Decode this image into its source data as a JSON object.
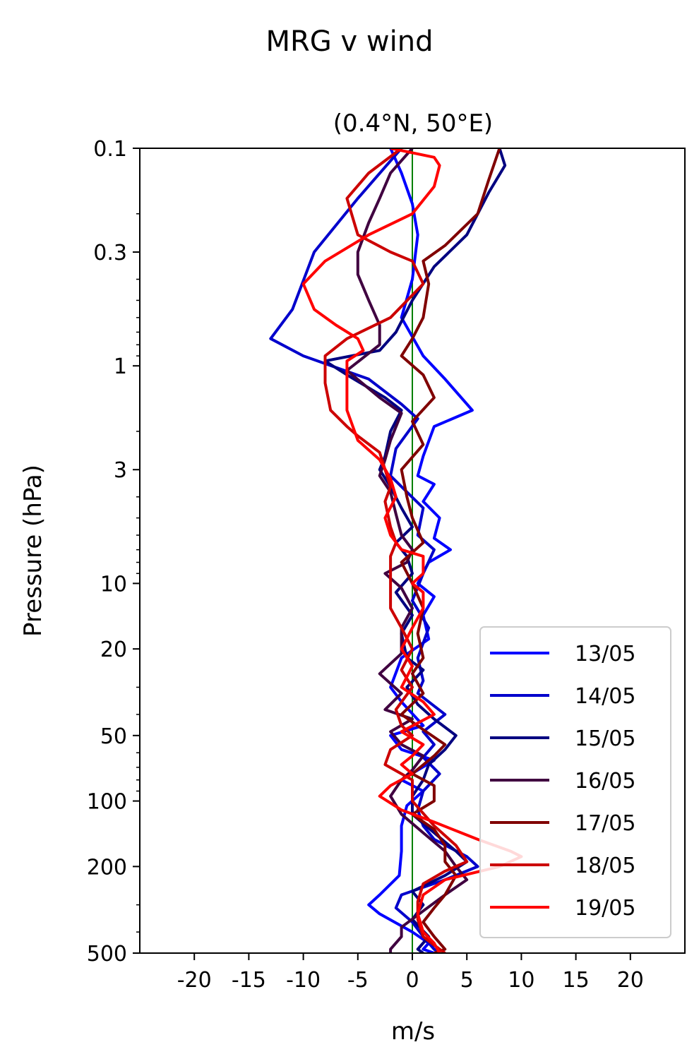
{
  "chart_data": {
    "type": "line",
    "suptitle": "MRG v wind",
    "title": "(0.4°N, 50°E)",
    "xlabel": "m/s",
    "ylabel": "Pressure (hPa)",
    "xlim": [
      -25,
      25
    ],
    "ylim": [
      500,
      0.1
    ],
    "yscale": "log",
    "xticks": [
      -20,
      -15,
      -10,
      -5,
      0,
      5,
      10,
      15,
      20
    ],
    "xtick_labels": [
      "-20",
      "-15",
      "-10",
      "-5",
      "0",
      "5",
      "10",
      "15",
      "20"
    ],
    "yticks": [
      0.1,
      0.3,
      1,
      3,
      10,
      20,
      50,
      100,
      200,
      500
    ],
    "ytick_labels": [
      "0.1",
      "0.3",
      "1",
      "3",
      "10",
      "20",
      "50",
      "100",
      "200",
      "500"
    ],
    "zero_line_color": "#008000",
    "legend_position": "lower-right",
    "grid": false,
    "series": [
      {
        "name": "13/05",
        "color": "#0000ff",
        "points": [
          [
            -2,
            0.1
          ],
          [
            -1,
            0.13
          ],
          [
            0,
            0.18
          ],
          [
            0.5,
            0.25
          ],
          [
            0,
            0.4
          ],
          [
            -1,
            0.6
          ],
          [
            1,
            0.9
          ],
          [
            3,
            1.15
          ],
          [
            5.5,
            1.6
          ],
          [
            2,
            1.9
          ],
          [
            1,
            2.6
          ],
          [
            0.5,
            3.2
          ],
          [
            2,
            3.5
          ],
          [
            1,
            4.2
          ],
          [
            2.5,
            5
          ],
          [
            2,
            6.2
          ],
          [
            3.5,
            7
          ],
          [
            1.5,
            8
          ],
          [
            0.5,
            10
          ],
          [
            2,
            11.5
          ],
          [
            1,
            14
          ],
          [
            1.5,
            18
          ],
          [
            -1,
            22
          ],
          [
            -2,
            30
          ],
          [
            -1,
            35
          ],
          [
            1,
            45
          ],
          [
            -2,
            50
          ],
          [
            -1,
            58
          ],
          [
            2,
            65
          ],
          [
            -1,
            80
          ],
          [
            1,
            90
          ],
          [
            -0.5,
            105
          ],
          [
            -1,
            130
          ],
          [
            -1,
            170
          ],
          [
            -1.2,
            220
          ],
          [
            -3,
            270
          ],
          [
            -4,
            300
          ],
          [
            -3,
            330
          ],
          [
            0,
            400
          ],
          [
            1.5,
            450
          ],
          [
            1,
            480
          ],
          [
            2,
            500
          ]
        ]
      },
      {
        "name": "14/05",
        "color": "#0000cc",
        "points": [
          [
            -1,
            0.1
          ],
          [
            -5,
            0.17
          ],
          [
            -9,
            0.3
          ],
          [
            -11,
            0.55
          ],
          [
            -13,
            0.75
          ],
          [
            -10,
            0.9
          ],
          [
            -4,
            1.15
          ],
          [
            -1,
            1.5
          ],
          [
            0.5,
            1.75
          ],
          [
            -1.5,
            2.4
          ],
          [
            -2,
            3.2
          ],
          [
            -0.5,
            3.8
          ],
          [
            1,
            4.5
          ],
          [
            0.5,
            6
          ],
          [
            2,
            7
          ],
          [
            1,
            9
          ],
          [
            0,
            12
          ],
          [
            1.5,
            16
          ],
          [
            0.5,
            22
          ],
          [
            1,
            28
          ],
          [
            0.5,
            32
          ],
          [
            3,
            40
          ],
          [
            1,
            48
          ],
          [
            2,
            55
          ],
          [
            1,
            63
          ],
          [
            2.5,
            75
          ],
          [
            1,
            90
          ],
          [
            0.5,
            110
          ],
          [
            1,
            130
          ],
          [
            2,
            150
          ],
          [
            5,
            180
          ],
          [
            6,
            200
          ],
          [
            3,
            230
          ],
          [
            -1,
            270
          ],
          [
            -1.5,
            310
          ],
          [
            0,
            360
          ],
          [
            1,
            420
          ],
          [
            2,
            480
          ],
          [
            2.5,
            500
          ]
        ]
      },
      {
        "name": "15/05",
        "color": "#000080",
        "points": [
          [
            8,
            0.1
          ],
          [
            8.5,
            0.12
          ],
          [
            7,
            0.16
          ],
          [
            5,
            0.25
          ],
          [
            2,
            0.35
          ],
          [
            0,
            0.5
          ],
          [
            -1.5,
            0.7
          ],
          [
            -3,
            0.85
          ],
          [
            -8,
            0.95
          ],
          [
            -6,
            1.1
          ],
          [
            -2.5,
            1.4
          ],
          [
            -1,
            1.6
          ],
          [
            -2,
            2
          ],
          [
            -2.5,
            2.6
          ],
          [
            -3,
            3
          ],
          [
            -2,
            3.6
          ],
          [
            -1,
            4.5
          ],
          [
            0,
            5.5
          ],
          [
            -1.5,
            6.5
          ],
          [
            -0.5,
            7.5
          ],
          [
            0,
            9
          ],
          [
            -1.5,
            11
          ],
          [
            0,
            14
          ],
          [
            -1,
            17
          ],
          [
            -0.5,
            22
          ],
          [
            1,
            25
          ],
          [
            -0.5,
            30
          ],
          [
            0.5,
            36
          ],
          [
            2,
            42
          ],
          [
            4,
            50
          ],
          [
            3,
            58
          ],
          [
            1.5,
            68
          ],
          [
            1,
            80
          ],
          [
            0,
            95
          ],
          [
            0,
            115
          ],
          [
            2,
            140
          ],
          [
            4,
            170
          ],
          [
            5,
            190
          ],
          [
            3,
            220
          ],
          [
            0,
            260
          ],
          [
            1,
            300
          ],
          [
            0,
            350
          ],
          [
            1.5,
            420
          ],
          [
            0.5,
            480
          ],
          [
            1,
            500
          ]
        ]
      },
      {
        "name": "16/05",
        "color": "#400040",
        "points": [
          [
            0,
            0.1
          ],
          [
            -2,
            0.13
          ],
          [
            -3,
            0.17
          ],
          [
            -4,
            0.22
          ],
          [
            -5,
            0.3
          ],
          [
            -5,
            0.38
          ],
          [
            -4,
            0.5
          ],
          [
            -3,
            0.65
          ],
          [
            -3,
            0.8
          ],
          [
            -6,
            1.05
          ],
          [
            -3,
            1.4
          ],
          [
            -1,
            1.65
          ],
          [
            -2,
            2.2
          ],
          [
            -2.5,
            2.7
          ],
          [
            -3,
            3.2
          ],
          [
            -2,
            3.8
          ],
          [
            -1.5,
            4.8
          ],
          [
            -1,
            6
          ],
          [
            0,
            7
          ],
          [
            -0.5,
            8
          ],
          [
            -2.5,
            9
          ],
          [
            -1,
            10.5
          ],
          [
            0,
            13
          ],
          [
            -1,
            16
          ],
          [
            -1,
            21
          ],
          [
            -3,
            26
          ],
          [
            -1,
            32
          ],
          [
            -2.5,
            38
          ],
          [
            0,
            42
          ],
          [
            -2,
            48
          ],
          [
            -1,
            55
          ],
          [
            1,
            62
          ],
          [
            0,
            72
          ],
          [
            -1,
            80
          ],
          [
            -2,
            95
          ],
          [
            -1,
            115
          ],
          [
            1,
            140
          ],
          [
            3,
            170
          ],
          [
            4,
            200
          ],
          [
            5,
            230
          ],
          [
            3,
            270
          ],
          [
            1,
            320
          ],
          [
            -1,
            380
          ],
          [
            -1,
            420
          ],
          [
            -2,
            480
          ],
          [
            -2,
            500
          ]
        ]
      },
      {
        "name": "17/05",
        "color": "#800000",
        "points": [
          [
            8,
            0.1
          ],
          [
            7,
            0.14
          ],
          [
            6,
            0.2
          ],
          [
            3,
            0.28
          ],
          [
            1,
            0.33
          ],
          [
            1.5,
            0.42
          ],
          [
            1,
            0.6
          ],
          [
            0,
            0.75
          ],
          [
            -1,
            0.9
          ],
          [
            1,
            1.1
          ],
          [
            2,
            1.4
          ],
          [
            0,
            1.8
          ],
          [
            1,
            2.3
          ],
          [
            -1,
            3
          ],
          [
            -0.5,
            4
          ],
          [
            0,
            5
          ],
          [
            1,
            6.5
          ],
          [
            -1,
            8
          ],
          [
            0,
            10
          ],
          [
            1,
            13
          ],
          [
            0.5,
            17
          ],
          [
            1,
            22
          ],
          [
            0,
            26
          ],
          [
            1,
            32
          ],
          [
            -1,
            40
          ],
          [
            1,
            47
          ],
          [
            3,
            55
          ],
          [
            2,
            62
          ],
          [
            0,
            75
          ],
          [
            2,
            85
          ],
          [
            2,
            100
          ],
          [
            0,
            115
          ],
          [
            2,
            135
          ],
          [
            3,
            160
          ],
          [
            3,
            190
          ],
          [
            4,
            220
          ],
          [
            3,
            270
          ],
          [
            2,
            310
          ],
          [
            1,
            360
          ],
          [
            2,
            420
          ],
          [
            3,
            480
          ],
          [
            2,
            500
          ]
        ]
      },
      {
        "name": "18/05",
        "color": "#cc0000",
        "points": [
          [
            -1,
            0.1
          ],
          [
            -4,
            0.13
          ],
          [
            -6,
            0.17
          ],
          [
            -5,
            0.25
          ],
          [
            -2,
            0.3
          ],
          [
            0,
            0.33
          ],
          [
            1,
            0.42
          ],
          [
            -2,
            0.6
          ],
          [
            -6,
            0.75
          ],
          [
            -8,
            0.9
          ],
          [
            -8,
            1.2
          ],
          [
            -7.5,
            1.6
          ],
          [
            -6,
            1.9
          ],
          [
            -5,
            2.1
          ],
          [
            -3,
            2.5
          ],
          [
            -2.5,
            3
          ],
          [
            -2,
            3.6
          ],
          [
            -2.5,
            4.2
          ],
          [
            -2,
            5.5
          ],
          [
            -1.5,
            6.5
          ],
          [
            -2,
            7.5
          ],
          [
            -2,
            9
          ],
          [
            -2,
            11
          ],
          [
            -2,
            13
          ],
          [
            -1,
            16
          ],
          [
            0,
            20
          ],
          [
            -1,
            25
          ],
          [
            0,
            30
          ],
          [
            -1.5,
            38
          ],
          [
            -1,
            45
          ],
          [
            0,
            50
          ],
          [
            -2,
            58
          ],
          [
            -2.5,
            68
          ],
          [
            0,
            80
          ],
          [
            0,
            100
          ],
          [
            2,
            130
          ],
          [
            4,
            160
          ],
          [
            5,
            190
          ],
          [
            3,
            210
          ],
          [
            1,
            240
          ],
          [
            0.5,
            290
          ],
          [
            0.5,
            350
          ],
          [
            1,
            420
          ],
          [
            2,
            460
          ],
          [
            3,
            500
          ]
        ]
      },
      {
        "name": "19/05",
        "color": "#ff0000",
        "points": [
          [
            -2,
            0.1
          ],
          [
            2,
            0.11
          ],
          [
            2.5,
            0.12
          ],
          [
            2,
            0.15
          ],
          [
            0,
            0.2
          ],
          [
            -4,
            0.25
          ],
          [
            -8,
            0.33
          ],
          [
            -10,
            0.42
          ],
          [
            -9,
            0.55
          ],
          [
            -7,
            0.65
          ],
          [
            -5,
            0.75
          ],
          [
            -4.5,
            0.85
          ],
          [
            -6,
            0.95
          ],
          [
            -6,
            1.2
          ],
          [
            -6,
            1.6
          ],
          [
            -5,
            2.2
          ],
          [
            -3,
            2.7
          ],
          [
            -2,
            3.3
          ],
          [
            -1.5,
            4
          ],
          [
            -2.5,
            5
          ],
          [
            -2,
            6
          ],
          [
            -1,
            7
          ],
          [
            1,
            7.5
          ],
          [
            1,
            9
          ],
          [
            0,
            10
          ],
          [
            1,
            11
          ],
          [
            1,
            13
          ],
          [
            0,
            16
          ],
          [
            -1,
            20
          ],
          [
            0,
            24
          ],
          [
            -1,
            30
          ],
          [
            1,
            35
          ],
          [
            2,
            40
          ],
          [
            -1,
            48
          ],
          [
            1,
            55
          ],
          [
            0,
            62
          ],
          [
            -1,
            68
          ],
          [
            0,
            75
          ],
          [
            -2,
            85
          ],
          [
            -3,
            95
          ],
          [
            -1,
            110
          ],
          [
            2,
            125
          ],
          [
            6,
            150
          ],
          [
            9,
            170
          ],
          [
            10,
            180
          ],
          [
            8,
            200
          ],
          [
            3,
            230
          ],
          [
            1,
            270
          ],
          [
            0.5,
            330
          ],
          [
            1,
            400
          ],
          [
            2,
            450
          ],
          [
            2.5,
            500
          ]
        ]
      }
    ]
  }
}
